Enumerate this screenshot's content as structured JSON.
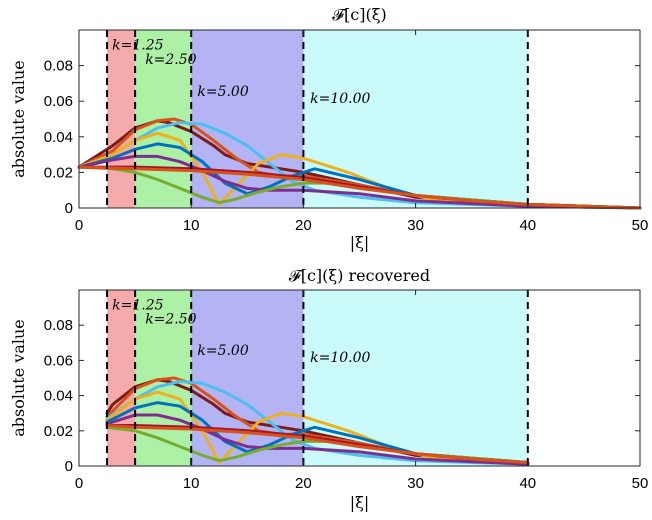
{
  "chart_data": [
    {
      "type": "line",
      "title": "𝓕[c](ξ)",
      "xlabel": "|ξ|",
      "ylabel": "absolute value",
      "xlim": [
        0,
        50
      ],
      "ylim": [
        0,
        0.1
      ],
      "xticks": [
        "0",
        "10",
        "20",
        "30",
        "40",
        "50"
      ],
      "yticks": [
        "0",
        "0.02",
        "0.04",
        "0.06",
        "0.08"
      ],
      "grid": false,
      "bands": [
        {
          "label": "k=1.25",
          "from": 2.5,
          "to": 5,
          "color": "#f4a7a7"
        },
        {
          "label": "k=2.50",
          "from": 5,
          "to": 10,
          "color": "#a8f0a0"
        },
        {
          "label": "k=5.00",
          "from": 10,
          "to": 20,
          "color": "#b0b0f4"
        },
        {
          "label": "k=10.00",
          "from": 20,
          "to": 40,
          "color": "#c8fafa"
        }
      ],
      "boundaries": [
        2.5,
        5,
        10,
        20,
        40
      ],
      "series": [
        {
          "color": "#7e1a1a",
          "x": [
            0,
            3,
            5,
            7,
            8,
            10,
            12,
            13,
            15,
            18,
            20,
            25,
            30,
            40,
            50
          ],
          "y": [
            0.023,
            0.035,
            0.045,
            0.049,
            0.048,
            0.043,
            0.035,
            0.03,
            0.025,
            0.022,
            0.02,
            0.013,
            0.006,
            0.002,
            0
          ]
        },
        {
          "color": "#d95319",
          "x": [
            0,
            3,
            5,
            7,
            8.5,
            10,
            12,
            14,
            16,
            18,
            20,
            25,
            30,
            40,
            50
          ],
          "y": [
            0.023,
            0.032,
            0.044,
            0.049,
            0.05,
            0.047,
            0.038,
            0.028,
            0.02,
            0.018,
            0.018,
            0.013,
            0.007,
            0.002,
            0
          ]
        },
        {
          "color": "#4dbeee",
          "x": [
            0,
            3,
            5,
            7,
            9,
            11,
            13,
            15,
            17,
            19,
            21,
            25,
            30,
            40,
            50
          ],
          "y": [
            0.023,
            0.03,
            0.038,
            0.045,
            0.048,
            0.047,
            0.042,
            0.035,
            0.025,
            0.015,
            0.01,
            0.006,
            0.003,
            0.001,
            0
          ]
        },
        {
          "color": "#edb120",
          "x": [
            0,
            3,
            5,
            7,
            9,
            11,
            12.5,
            14,
            16,
            18,
            20,
            24,
            28,
            32,
            40,
            50
          ],
          "y": [
            0.023,
            0.03,
            0.038,
            0.042,
            0.038,
            0.02,
            0.002,
            0.012,
            0.025,
            0.03,
            0.028,
            0.02,
            0.01,
            0.004,
            0.001,
            0
          ]
        },
        {
          "color": "#0072bd",
          "x": [
            0,
            3,
            5,
            7,
            9,
            11,
            13,
            15,
            17,
            19,
            21,
            25,
            30,
            40,
            50
          ],
          "y": [
            0.023,
            0.028,
            0.033,
            0.036,
            0.034,
            0.026,
            0.014,
            0.008,
            0.012,
            0.018,
            0.022,
            0.016,
            0.007,
            0.002,
            0
          ]
        },
        {
          "color": "#7e2f8e",
          "x": [
            0,
            3,
            5,
            7,
            9,
            11,
            13,
            15,
            17,
            20,
            25,
            30,
            40,
            50
          ],
          "y": [
            0.023,
            0.027,
            0.029,
            0.029,
            0.026,
            0.021,
            0.015,
            0.011,
            0.01,
            0.01,
            0.008,
            0.004,
            0.001,
            0
          ]
        },
        {
          "color": "#77ac30",
          "x": [
            0,
            3,
            5,
            7,
            9,
            11,
            12.5,
            14,
            16,
            18,
            20,
            22,
            25,
            30,
            40,
            50
          ],
          "y": [
            0.023,
            0.022,
            0.02,
            0.016,
            0.011,
            0.006,
            0.003,
            0.005,
            0.009,
            0.012,
            0.014,
            0.014,
            0.012,
            0.007,
            0.002,
            0
          ]
        },
        {
          "color": "#a2142f",
          "x": [
            0,
            5,
            10,
            15,
            20,
            25,
            30,
            35,
            40,
            45,
            50
          ],
          "y": [
            0.023,
            0.023,
            0.022,
            0.02,
            0.017,
            0.012,
            0.007,
            0.004,
            0.002,
            0.001,
            0
          ]
        },
        {
          "color": "#d95319",
          "x": [
            0,
            5,
            10,
            15,
            20,
            25,
            30,
            35,
            40,
            45,
            50
          ],
          "y": [
            0.023,
            0.022,
            0.021,
            0.019,
            0.016,
            0.011,
            0.007,
            0.004,
            0.002,
            0.001,
            0
          ]
        }
      ]
    },
    {
      "type": "line",
      "title": "𝓕[c](ξ) recovered",
      "xlabel": "|ξ|",
      "ylabel": "absolute value",
      "xlim": [
        0,
        50
      ],
      "ylim": [
        0,
        0.1
      ],
      "xticks": [
        "0",
        "10",
        "20",
        "30",
        "40",
        "50"
      ],
      "yticks": [
        "0",
        "0.02",
        "0.04",
        "0.06",
        "0.08"
      ],
      "grid": false,
      "bands": [
        {
          "label": "k=1.25",
          "from": 2.5,
          "to": 5,
          "color": "#f4a7a7"
        },
        {
          "label": "k=2.50",
          "from": 5,
          "to": 10,
          "color": "#a8f0a0"
        },
        {
          "label": "k=5.00",
          "from": 10,
          "to": 20,
          "color": "#b0b0f4"
        },
        {
          "label": "k=10.00",
          "from": 20,
          "to": 40,
          "color": "#c8fafa"
        }
      ],
      "boundaries": [
        2.5,
        5,
        10,
        20,
        40
      ],
      "series": [
        {
          "color": "#7e1a1a",
          "x": [
            2.5,
            3,
            5,
            7,
            8,
            10,
            12,
            13,
            15,
            18,
            20,
            25,
            30,
            40
          ],
          "y": [
            0.03,
            0.035,
            0.045,
            0.049,
            0.048,
            0.043,
            0.035,
            0.03,
            0.025,
            0.022,
            0.02,
            0.013,
            0.006,
            0.002
          ]
        },
        {
          "color": "#d95319",
          "x": [
            2.5,
            5,
            7,
            8.5,
            10,
            12,
            14,
            16,
            18,
            20,
            25,
            30,
            40
          ],
          "y": [
            0.028,
            0.044,
            0.049,
            0.05,
            0.047,
            0.038,
            0.028,
            0.02,
            0.018,
            0.018,
            0.013,
            0.007,
            0.002
          ]
        },
        {
          "color": "#4dbeee",
          "x": [
            2.5,
            5,
            7,
            9,
            11,
            13,
            15,
            17,
            19,
            21,
            25,
            30,
            40
          ],
          "y": [
            0.027,
            0.038,
            0.045,
            0.048,
            0.047,
            0.042,
            0.035,
            0.025,
            0.015,
            0.01,
            0.006,
            0.003,
            0.001
          ]
        },
        {
          "color": "#edb120",
          "x": [
            2.5,
            5,
            7,
            9,
            11,
            12.5,
            14,
            16,
            18,
            20,
            24,
            28,
            32,
            40
          ],
          "y": [
            0.026,
            0.038,
            0.042,
            0.038,
            0.02,
            0.002,
            0.012,
            0.025,
            0.03,
            0.028,
            0.02,
            0.01,
            0.004,
            0.001
          ]
        },
        {
          "color": "#0072bd",
          "x": [
            2.5,
            5,
            7,
            9,
            11,
            13,
            15,
            17,
            19,
            21,
            25,
            30,
            40
          ],
          "y": [
            0.025,
            0.033,
            0.036,
            0.034,
            0.026,
            0.014,
            0.008,
            0.012,
            0.018,
            0.022,
            0.016,
            0.007,
            0.002
          ]
        },
        {
          "color": "#7e2f8e",
          "x": [
            2.5,
            5,
            7,
            9,
            11,
            13,
            15,
            17,
            20,
            25,
            30,
            40
          ],
          "y": [
            0.024,
            0.029,
            0.029,
            0.026,
            0.021,
            0.015,
            0.011,
            0.01,
            0.01,
            0.008,
            0.004,
            0.001
          ]
        },
        {
          "color": "#77ac30",
          "x": [
            2.5,
            5,
            7,
            9,
            11,
            12.5,
            14,
            16,
            18,
            20,
            22,
            25,
            30,
            40
          ],
          "y": [
            0.022,
            0.02,
            0.016,
            0.011,
            0.006,
            0.003,
            0.005,
            0.009,
            0.012,
            0.014,
            0.014,
            0.012,
            0.007,
            0.002
          ]
        },
        {
          "color": "#a2142f",
          "x": [
            2.5,
            5,
            10,
            15,
            20,
            25,
            30,
            35,
            40
          ],
          "y": [
            0.023,
            0.023,
            0.022,
            0.02,
            0.017,
            0.012,
            0.007,
            0.004,
            0.002
          ]
        },
        {
          "color": "#d95319",
          "x": [
            2.5,
            5,
            10,
            15,
            20,
            25,
            30,
            35,
            40
          ],
          "y": [
            0.023,
            0.022,
            0.021,
            0.019,
            0.016,
            0.011,
            0.007,
            0.004,
            0.002
          ]
        }
      ]
    }
  ]
}
